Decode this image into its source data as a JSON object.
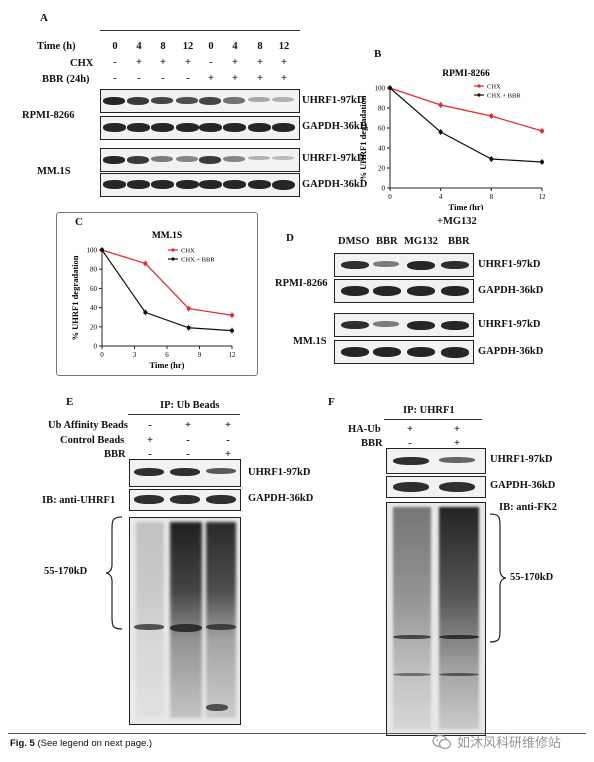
{
  "panelA": {
    "letter": "A",
    "row_time": "Time (h)",
    "row_chx": "CHX",
    "row_bbr": "BBR  (24h)",
    "times": [
      "0",
      "4",
      "8",
      "12",
      "0",
      "4",
      "8",
      "12"
    ],
    "chx": [
      "-",
      "+",
      "+",
      "+",
      "-",
      "+",
      "+",
      "+"
    ],
    "bbr": [
      "-",
      "-",
      "-",
      "-",
      "+",
      "+",
      "+",
      "+"
    ],
    "cell1": "RPMI-8266",
    "cell2": "MM.1S",
    "uhrf1": "UHRF1-97kD",
    "gapdh": "GAPDH-36kD"
  },
  "panelB": {
    "letter": "B",
    "chart_data": {
      "type": "line",
      "title": "RPMI-8266",
      "xlabel": "Time (hr)",
      "ylabel": "% UHRF1 degradation",
      "x": [
        0,
        4,
        8,
        12
      ],
      "xticks": [
        "0",
        "4",
        "8",
        "12"
      ],
      "yticks": [
        "0",
        "20",
        "40",
        "60",
        "80",
        "100"
      ],
      "xlim": [
        0,
        12
      ],
      "ylim": [
        0,
        100
      ],
      "series": [
        {
          "name": "CHX",
          "color": "#e8262a",
          "values": [
            100,
            83,
            72,
            57
          ]
        },
        {
          "name": "CHX + BBR",
          "color": "#111111",
          "values": [
            100,
            56,
            29,
            26
          ]
        }
      ],
      "legend": "top-right"
    }
  },
  "panelC": {
    "letter": "C",
    "chart_data": {
      "type": "line",
      "title": "MM.1S",
      "xlabel": "Time (hr)",
      "ylabel": "% UHRF1 degradation",
      "x": [
        0,
        4,
        8,
        12
      ],
      "xticks": [
        "0",
        "3",
        "6",
        "9",
        "12"
      ],
      "xtick_values": [
        0,
        3,
        6,
        9,
        12
      ],
      "yticks": [
        "0",
        "20",
        "40",
        "60",
        "80",
        "100"
      ],
      "xlim": [
        0,
        12
      ],
      "ylim": [
        0,
        100
      ],
      "series": [
        {
          "name": "CHX",
          "color": "#e8262a",
          "values": [
            100,
            86,
            39,
            32
          ]
        },
        {
          "name": "CHX + BBR",
          "color": "#111111",
          "values": [
            100,
            35,
            19,
            16
          ]
        }
      ],
      "legend": "top-right"
    }
  },
  "panelD": {
    "letter": "D",
    "mg132_top": "+MG132",
    "lanes": [
      "DMSO",
      "BBR",
      "MG132",
      "BBR"
    ],
    "cell1": "RPMI-8266",
    "cell2": "MM.1S",
    "uhrf1": "UHRF1-97kD",
    "gapdh": "GAPDH-36kD"
  },
  "panelE": {
    "letter": "E",
    "header": "IP: Ub Beads",
    "row1": "Ub Affinity Beads",
    "row1_vals": [
      "-",
      "+",
      "+"
    ],
    "row2": "Control Beads",
    "row2_vals": [
      "+",
      "-",
      "-"
    ],
    "row3": "BBR",
    "row3_vals": [
      "-",
      "-",
      "+"
    ],
    "uhrf1": "UHRF1-97kD",
    "gapdh": "GAPDH-36kD",
    "ib": "IB: anti-UHRF1",
    "range": "55-170kD"
  },
  "panelF": {
    "letter": "F",
    "header": "IP: UHRF1",
    "row1": "HA-Ub",
    "row1_vals": [
      "+",
      "+"
    ],
    "row2": "BBR",
    "row2_vals": [
      "-",
      "+"
    ],
    "uhrf1": "UHRF1-97kD",
    "gapdh": "GAPDH-36kD",
    "ib": "IB: anti-FK2",
    "range": "55-170kD"
  },
  "caption": {
    "fig": "Fig. 5",
    "text": "(See legend on next page.)",
    "watermark": "如沐风科研维修站"
  }
}
